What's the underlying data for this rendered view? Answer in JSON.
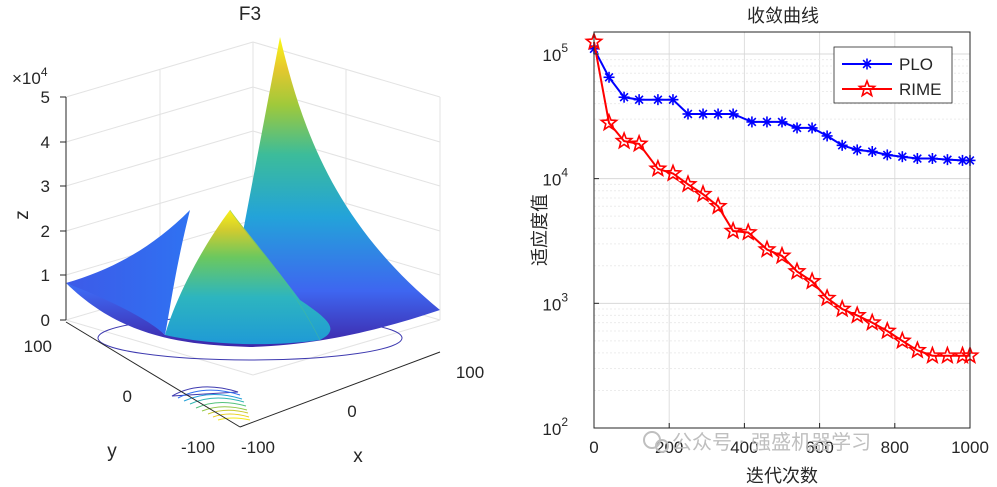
{
  "watermark": "公众号 · 强盛机器学习",
  "chart_data": [
    {
      "type": "surface3d",
      "title": "F3",
      "xlabel": "x",
      "ylabel": "y",
      "zlabel": "z",
      "z_exponent_label": "×10",
      "z_exponent": "4",
      "x_ticks": [
        "-100",
        "0",
        "100"
      ],
      "y_ticks": [
        "-100",
        "0",
        "100"
      ],
      "z_ticks": [
        "0",
        "1",
        "2",
        "3",
        "4",
        "5"
      ],
      "xlim": [
        -100,
        100
      ],
      "ylim": [
        -100,
        100
      ],
      "zlim": [
        0,
        50000
      ],
      "surface_peak_values": {
        "corner_x100_y100": 50000,
        "corner_x-100_y-100": 10000,
        "corner_x100_y-100": 30000,
        "minimum": 0
      },
      "colormap": [
        "#3e26a8",
        "#2e7ef6",
        "#1cb3c8",
        "#5ec962",
        "#c8cc2a",
        "#f9fb15"
      ],
      "contour_levels": 10,
      "grid": true
    },
    {
      "type": "line",
      "title": "收敛曲线",
      "xlabel": "迭代次数",
      "ylabel": "适应度值",
      "yscale": "log",
      "xlim": [
        0,
        1000
      ],
      "ylim": [
        100,
        150000
      ],
      "x_ticks": [
        "0",
        "200",
        "400",
        "600",
        "800",
        "1000"
      ],
      "y_tick_values": [
        100,
        1000,
        10000,
        100000
      ],
      "y_tick_base": "10",
      "y_tick_exponents": [
        "2",
        "3",
        "4",
        "5"
      ],
      "grid": true,
      "legend_position": "top-right",
      "series": [
        {
          "name": "PLO",
          "color": "#0000ff",
          "marker": "asterisk",
          "x": [
            0,
            40,
            80,
            120,
            170,
            210,
            250,
            290,
            330,
            370,
            420,
            460,
            500,
            540,
            580,
            620,
            660,
            700,
            740,
            780,
            820,
            860,
            900,
            940,
            980,
            1000
          ],
          "y": [
            110000,
            65000,
            45000,
            43000,
            43000,
            43000,
            33000,
            33000,
            33000,
            33000,
            28500,
            28500,
            28500,
            25500,
            25500,
            22000,
            18500,
            17000,
            16500,
            15500,
            15000,
            14500,
            14500,
            14200,
            14000,
            14000
          ]
        },
        {
          "name": "RIME",
          "color": "#ff0000",
          "marker": "pentagram",
          "x": [
            0,
            40,
            80,
            120,
            170,
            210,
            250,
            290,
            330,
            370,
            410,
            460,
            500,
            540,
            580,
            620,
            660,
            700,
            740,
            780,
            820,
            860,
            900,
            940,
            980,
            1000
          ],
          "y": [
            125000,
            28000,
            20000,
            19000,
            12000,
            11000,
            9000,
            7500,
            6000,
            3800,
            3700,
            2700,
            2400,
            1800,
            1500,
            1100,
            900,
            800,
            700,
            600,
            500,
            420,
            380,
            380,
            380,
            380
          ]
        }
      ]
    }
  ]
}
